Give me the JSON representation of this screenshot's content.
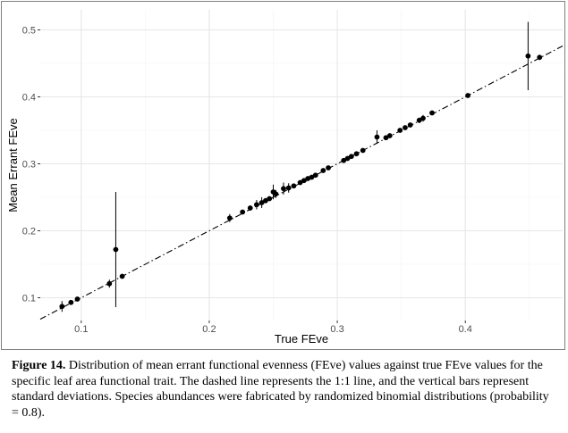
{
  "chart_data": {
    "type": "scatter",
    "xlabel": "True FEve",
    "ylabel": "Mean Errant FEve",
    "xlim": [
      0.068,
      0.476
    ],
    "ylim": [
      0.066,
      0.53
    ],
    "x_ticks": [
      0.1,
      0.2,
      0.3,
      0.4
    ],
    "x_tick_labels": [
      "0.1",
      "0.2",
      "0.3",
      "0.4"
    ],
    "y_ticks": [
      0.1,
      0.2,
      0.3,
      0.4,
      0.5
    ],
    "y_tick_labels": [
      "0.1",
      "0.2",
      "0.3",
      "0.4",
      "0.5"
    ],
    "grid": true,
    "reference_line": "1:1 line",
    "points": [
      {
        "x": 0.085,
        "y": 0.087,
        "sd": 0.008
      },
      {
        "x": 0.092,
        "y": 0.093,
        "sd": 0.002
      },
      {
        "x": 0.097,
        "y": 0.098,
        "sd": 0.002
      },
      {
        "x": 0.122,
        "y": 0.121,
        "sd": 0.006
      },
      {
        "x": 0.127,
        "y": 0.172,
        "sd": 0.086
      },
      {
        "x": 0.132,
        "y": 0.132,
        "sd": 0.002
      },
      {
        "x": 0.216,
        "y": 0.219,
        "sd": 0.006
      },
      {
        "x": 0.226,
        "y": 0.228,
        "sd": 0.002
      },
      {
        "x": 0.232,
        "y": 0.234,
        "sd": 0.004
      },
      {
        "x": 0.237,
        "y": 0.239,
        "sd": 0.007
      },
      {
        "x": 0.241,
        "y": 0.242,
        "sd": 0.008
      },
      {
        "x": 0.244,
        "y": 0.245,
        "sd": 0.004
      },
      {
        "x": 0.247,
        "y": 0.248,
        "sd": 0.003
      },
      {
        "x": 0.25,
        "y": 0.258,
        "sd": 0.011
      },
      {
        "x": 0.252,
        "y": 0.255,
        "sd": 0.006
      },
      {
        "x": 0.258,
        "y": 0.263,
        "sd": 0.009
      },
      {
        "x": 0.262,
        "y": 0.264,
        "sd": 0.007
      },
      {
        "x": 0.266,
        "y": 0.267,
        "sd": 0.003
      },
      {
        "x": 0.271,
        "y": 0.272,
        "sd": 0.002
      },
      {
        "x": 0.274,
        "y": 0.275,
        "sd": 0.003
      },
      {
        "x": 0.277,
        "y": 0.278,
        "sd": 0.002
      },
      {
        "x": 0.28,
        "y": 0.28,
        "sd": 0.002
      },
      {
        "x": 0.283,
        "y": 0.283,
        "sd": 0.002
      },
      {
        "x": 0.289,
        "y": 0.29,
        "sd": 0.002
      },
      {
        "x": 0.293,
        "y": 0.294,
        "sd": 0.002
      },
      {
        "x": 0.305,
        "y": 0.305,
        "sd": 0.002
      },
      {
        "x": 0.308,
        "y": 0.308,
        "sd": 0.002
      },
      {
        "x": 0.311,
        "y": 0.311,
        "sd": 0.002
      },
      {
        "x": 0.315,
        "y": 0.315,
        "sd": 0.002
      },
      {
        "x": 0.32,
        "y": 0.32,
        "sd": 0.002
      },
      {
        "x": 0.331,
        "y": 0.34,
        "sd": 0.01
      },
      {
        "x": 0.338,
        "y": 0.339,
        "sd": 0.002
      },
      {
        "x": 0.341,
        "y": 0.342,
        "sd": 0.002
      },
      {
        "x": 0.349,
        "y": 0.35,
        "sd": 0.002
      },
      {
        "x": 0.353,
        "y": 0.354,
        "sd": 0.002
      },
      {
        "x": 0.357,
        "y": 0.358,
        "sd": 0.003
      },
      {
        "x": 0.364,
        "y": 0.365,
        "sd": 0.004
      },
      {
        "x": 0.367,
        "y": 0.368,
        "sd": 0.005
      },
      {
        "x": 0.374,
        "y": 0.376,
        "sd": 0.002
      },
      {
        "x": 0.402,
        "y": 0.402,
        "sd": 0.002
      },
      {
        "x": 0.449,
        "y": 0.461,
        "sd": 0.051
      },
      {
        "x": 0.458,
        "y": 0.459,
        "sd": 0.004
      }
    ]
  },
  "caption": {
    "label": "Figure 14.",
    "text": " Distribution of mean errant functional evenness (FEve) values against true FEve values for the specific leaf area functional trait. The dashed line represents the 1:1 line, and the vertical bars represent standard deviations. Species abundances were fabricated by randomized binomial distributions (probability = 0.8)."
  }
}
